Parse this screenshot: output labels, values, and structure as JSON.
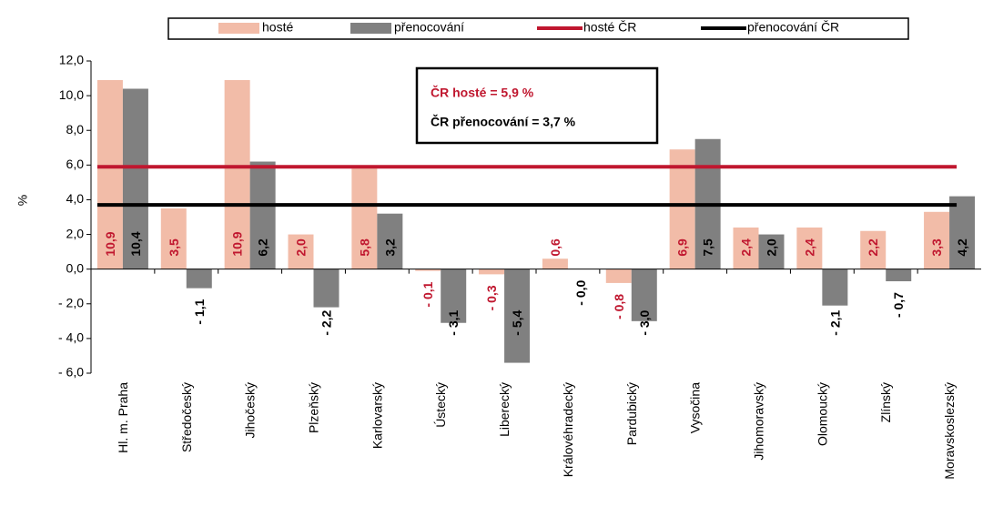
{
  "chart_data": {
    "type": "bar",
    "y_axis_label": "%",
    "categories": [
      "Hl. m. Praha",
      "Středočeský",
      "Jihočeský",
      "Plzeňský",
      "Karlovarský",
      "Ústecký",
      "Liberecký",
      "Královéhradecký",
      "Pardubický",
      "Vysočina",
      "Jihomoravský",
      "Olomoucký",
      "Zlínský",
      "Moravskoslezský"
    ],
    "series": [
      {
        "name": "hosté",
        "color": "#f2bca8",
        "label_color": "#c0172f",
        "values": [
          10.9,
          3.5,
          10.9,
          2.0,
          5.8,
          -0.1,
          -0.3,
          0.6,
          -0.8,
          6.9,
          2.4,
          2.4,
          2.2,
          3.3
        ],
        "value_labels": [
          "10,9",
          "3,5",
          "10,9",
          "2,0",
          "5,8",
          "- 0,1",
          "- 0,3",
          "0,6",
          "- 0,8",
          "6,9",
          "2,4",
          "2,4",
          "2,2",
          "3,3"
        ]
      },
      {
        "name": "přenocování",
        "color": "#808080",
        "label_color": "#000000",
        "values": [
          10.4,
          -1.1,
          6.2,
          -2.2,
          3.2,
          -3.1,
          -5.4,
          0,
          -3.0,
          7.5,
          2.0,
          -2.1,
          -0.7,
          4.2
        ],
        "value_labels": [
          "10,4",
          "- 1,1",
          "6,2",
          "- 2,2",
          "3,2",
          "- 3,1",
          "- 5,4",
          "- 0,0",
          "- 3,0",
          "7,5",
          "2,0",
          "- 2,1",
          "- 0,7",
          "4,2"
        ]
      }
    ],
    "reference_lines": [
      {
        "name": "hosté ČR",
        "value": 5.9,
        "color": "#c0172f"
      },
      {
        "name": "přenocování ČR",
        "value": 3.7,
        "color": "#000000"
      }
    ],
    "annotations": [
      {
        "text": "ČR hosté = 5,9 %",
        "color": "#c0172f"
      },
      {
        "text": "ČR přenocování = 3,7 %",
        "color": "#000000"
      }
    ],
    "ylim": [
      -6,
      12
    ],
    "yticks": [
      {
        "value": -6,
        "label": "- 6,0"
      },
      {
        "value": -4,
        "label": "- 4,0"
      },
      {
        "value": -2,
        "label": "- 2,0"
      },
      {
        "value": 0,
        "label": "0,0"
      },
      {
        "value": 2,
        "label": "2,0"
      },
      {
        "value": 4,
        "label": "4,0"
      },
      {
        "value": 6,
        "label": "6,0"
      },
      {
        "value": 8,
        "label": "8,0"
      },
      {
        "value": 10,
        "label": "10,0"
      },
      {
        "value": 12,
        "label": "12,0"
      }
    ]
  }
}
